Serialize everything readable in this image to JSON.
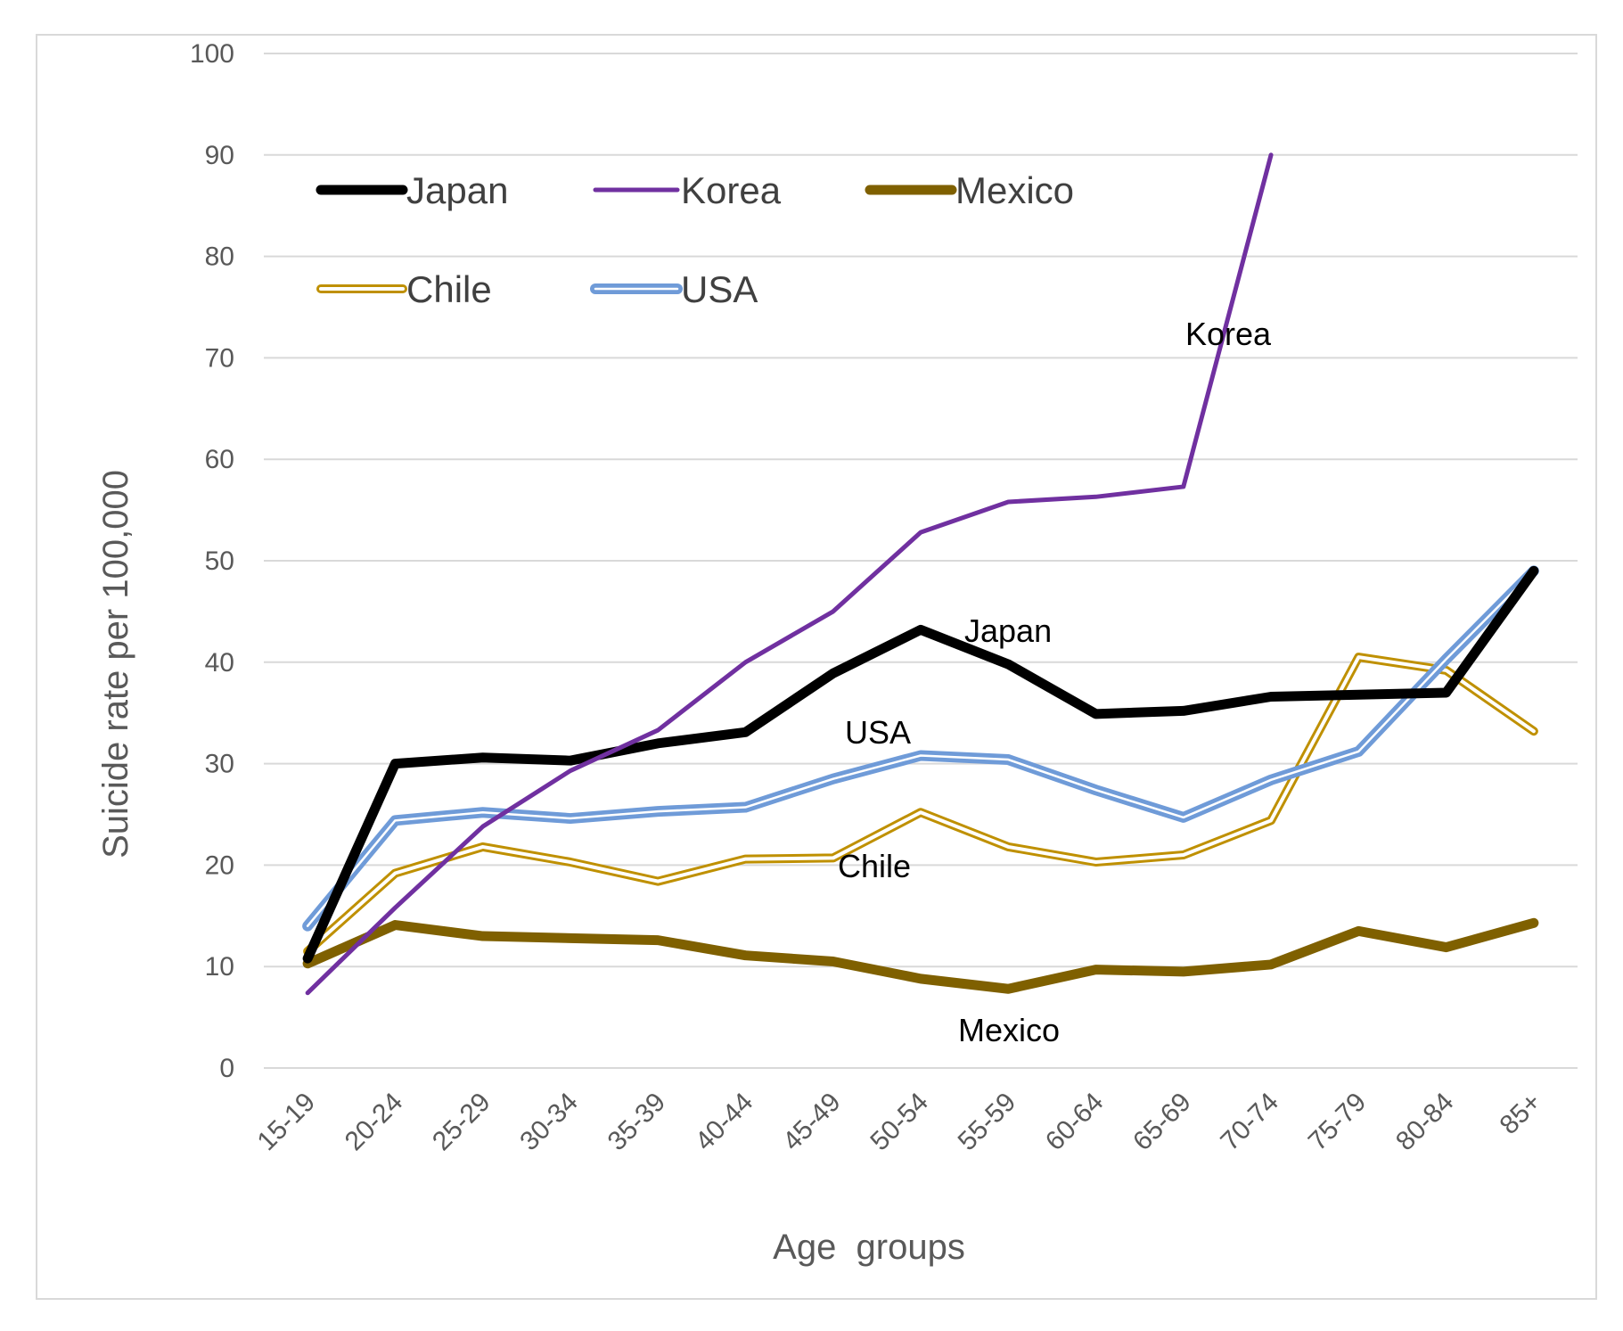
{
  "chart_data": {
    "type": "line",
    "title": "",
    "xlabel": "Age  groups",
    "ylabel": "Suicide rate per 100,000",
    "ylim": [
      0,
      100
    ],
    "yticks": [
      0,
      10,
      20,
      30,
      40,
      50,
      60,
      70,
      80,
      90,
      100
    ],
    "grid": true,
    "legend_position": "top-left",
    "categories": [
      "15-19",
      "20-24",
      "25-29",
      "30-34",
      "35-39",
      "40-44",
      "45-49",
      "50-54",
      "55-59",
      "60-64",
      "65-69",
      "70-74",
      "75-79",
      "80-84",
      "85+"
    ],
    "series": [
      {
        "name": "Japan",
        "color": "#000000",
        "style": "thick",
        "values": [
          10.8,
          30.0,
          30.6,
          30.3,
          32.0,
          33.1,
          38.9,
          43.2,
          39.8,
          34.9,
          35.2,
          36.6,
          36.8,
          37.0,
          49.0
        ]
      },
      {
        "name": "Korea",
        "color": "#7030a0",
        "style": "thin",
        "values": [
          7.4,
          15.8,
          23.8,
          29.3,
          33.3,
          40.0,
          45.0,
          52.8,
          55.8,
          56.3,
          57.3,
          90.0,
          null,
          null,
          null
        ]
      },
      {
        "name": "Mexico",
        "color": "#7f6000",
        "style": "thick",
        "values": [
          10.3,
          14.1,
          13.0,
          12.8,
          12.6,
          11.1,
          10.5,
          8.8,
          7.8,
          9.7,
          9.5,
          10.2,
          13.5,
          11.9,
          14.3
        ]
      },
      {
        "name": "Chile",
        "color": "#bf9000",
        "style": "double",
        "values": [
          11.5,
          19.2,
          21.8,
          20.3,
          18.4,
          20.6,
          20.7,
          25.2,
          21.8,
          20.3,
          21.0,
          24.4,
          40.5,
          39.2,
          33.2
        ]
      },
      {
        "name": "USA",
        "color": "#6f9bd8",
        "style": "double-thick",
        "values": [
          14.0,
          24.4,
          25.2,
          24.6,
          25.3,
          25.7,
          28.5,
          30.8,
          30.4,
          27.4,
          24.7,
          28.4,
          31.2,
          40.3,
          49.0
        ]
      }
    ],
    "annotations": [
      {
        "text": "Korea",
        "series": "Korea"
      },
      {
        "text": "Japan",
        "series": "Japan"
      },
      {
        "text": "USA",
        "series": "USA"
      },
      {
        "text": "Chile",
        "series": "Chile"
      },
      {
        "text": "Mexico",
        "series": "Mexico"
      }
    ]
  }
}
